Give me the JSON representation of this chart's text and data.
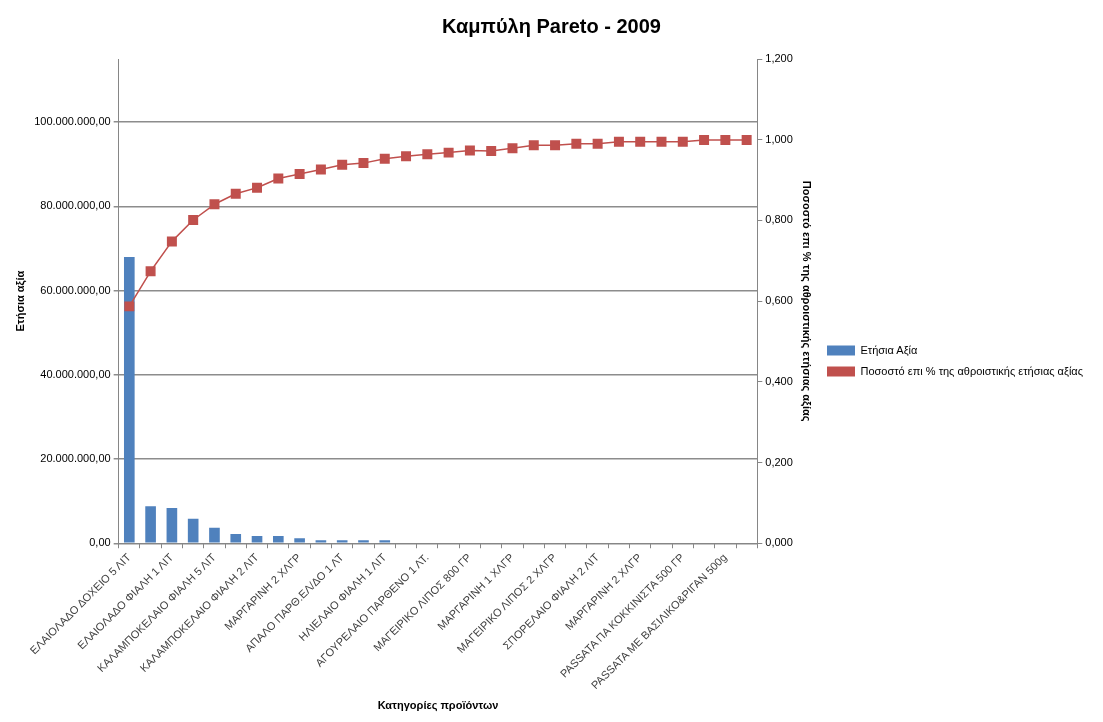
{
  "chart_data": {
    "type": "bar",
    "title": "Καμπύλη Pareto - 2009",
    "xlabel": "Κατηγορίες προϊόντων",
    "ylabel": "Ετήσια αξία",
    "y2label": "Ποσοστό επι % της αθροιστικής ετήσιας αξίας",
    "categories": [
      "ΕΛΑΙΟΛΑΔΟ ΔΟΧΕΙΟ 5 ΛΙΤ",
      null,
      "ΕΛΑΙΟΛΑΔΟ ΦΙΑΛΗ 1 ΛΙΤ",
      null,
      "ΚΑΛΑΜΠΟΚΕΛΑΙΟ ΦΙΑΛΗ 5 ΛΙΤ",
      null,
      "ΚΑΛΑΜΠΟΚΕΛΑΙΟ ΦΙΑΛΗ 2 ΛΙΤ",
      null,
      "ΜΑΡΓΑΡΙΝΗ 2 ΧΛΓΡ",
      null,
      "ΑΠΑΛΟ ΠΑΡΘ.ΕΛ/ΔΟ 1 ΛΤ",
      null,
      "ΗΛΙΕΛΑΙΟ ΦΙΑΛΗ 1 ΛΙΤ",
      null,
      "ΑΓΟΥΡΕΛΑΙΟ ΠΑΡΘΕΝΟ 1 ΛΤ.",
      null,
      "ΜΑΓΕΙΡΙΚΟ ΛΙΠΟΣ 800 ΓΡ",
      null,
      "ΜΑΡΓΑΡΙΝΗ 1 ΧΛΓΡ",
      null,
      "ΜΑΓΕΙΡΙΚΟ ΛΙΠΟΣ 2 ΧΛΓΡ",
      null,
      "ΣΠΟΡΕΛΑΙΟ ΦΙΑΛΗ 2 ΛΙΤ",
      null,
      "ΜΑΡΓΑΡΙΝΗ 2 ΧΛΓΡ",
      null,
      "PASSATA ΠΑ ΚΟΚΚΙΝΙΣΤΑ 500 ΓΡ",
      null,
      "PASSATA ΜΕ ΒΑΣΙΛΙΚΟ&ΡΙΓΑΝ 500g",
      null
    ],
    "series": [
      {
        "name": "Ετήσια Αξία",
        "color": "#4f81bd",
        "values": [
          68000000,
          8800000,
          8400000,
          5800000,
          3700000,
          2200000,
          1700000,
          1700000,
          1200000,
          700000,
          700000,
          700000,
          700000,
          0,
          0,
          0,
          0,
          0,
          0,
          0,
          0,
          0,
          0,
          0,
          0,
          0,
          0,
          0,
          0,
          0
        ]
      },
      {
        "name": "Ποσοστό επι % της αθροιστικής ετήσιας αξίας",
        "type": "line",
        "axis": "y2",
        "color": "#c0504d",
        "marker": "square",
        "values": [
          0.587,
          0.674,
          0.748,
          0.801,
          0.84,
          0.866,
          0.881,
          0.904,
          0.915,
          0.926,
          0.938,
          0.942,
          0.953,
          0.959,
          0.964,
          0.968,
          0.973,
          0.972,
          0.979,
          0.986,
          0.986,
          0.99,
          0.99,
          0.995,
          0.995,
          0.995,
          0.995,
          0.999,
          0.999,
          0.999
        ]
      }
    ],
    "ylim": [
      0,
      115000000
    ],
    "yticks": [
      {
        "value": 0,
        "label": "0,00"
      },
      {
        "value": 20000000,
        "label": "20.000.000,00"
      },
      {
        "value": 40000000,
        "label": "40.000.000,00"
      },
      {
        "value": 60000000,
        "label": "60.000.000,00"
      },
      {
        "value": 80000000,
        "label": "80.000.000,00"
      },
      {
        "value": 100000000,
        "label": "100.000.000,00"
      }
    ],
    "y2lim": [
      0,
      1.2
    ],
    "y2ticks": [
      {
        "value": 0,
        "label": "0,000"
      },
      {
        "value": 0.2,
        "label": "0,200"
      },
      {
        "value": 0.4,
        "label": "0,400"
      },
      {
        "value": 0.6,
        "label": "0,600"
      },
      {
        "value": 0.8,
        "label": "0,800"
      },
      {
        "value": 1,
        "label": "1,000"
      },
      {
        "value": 1.2,
        "label": "1,200"
      }
    ],
    "grid": "y",
    "legend": "right"
  }
}
